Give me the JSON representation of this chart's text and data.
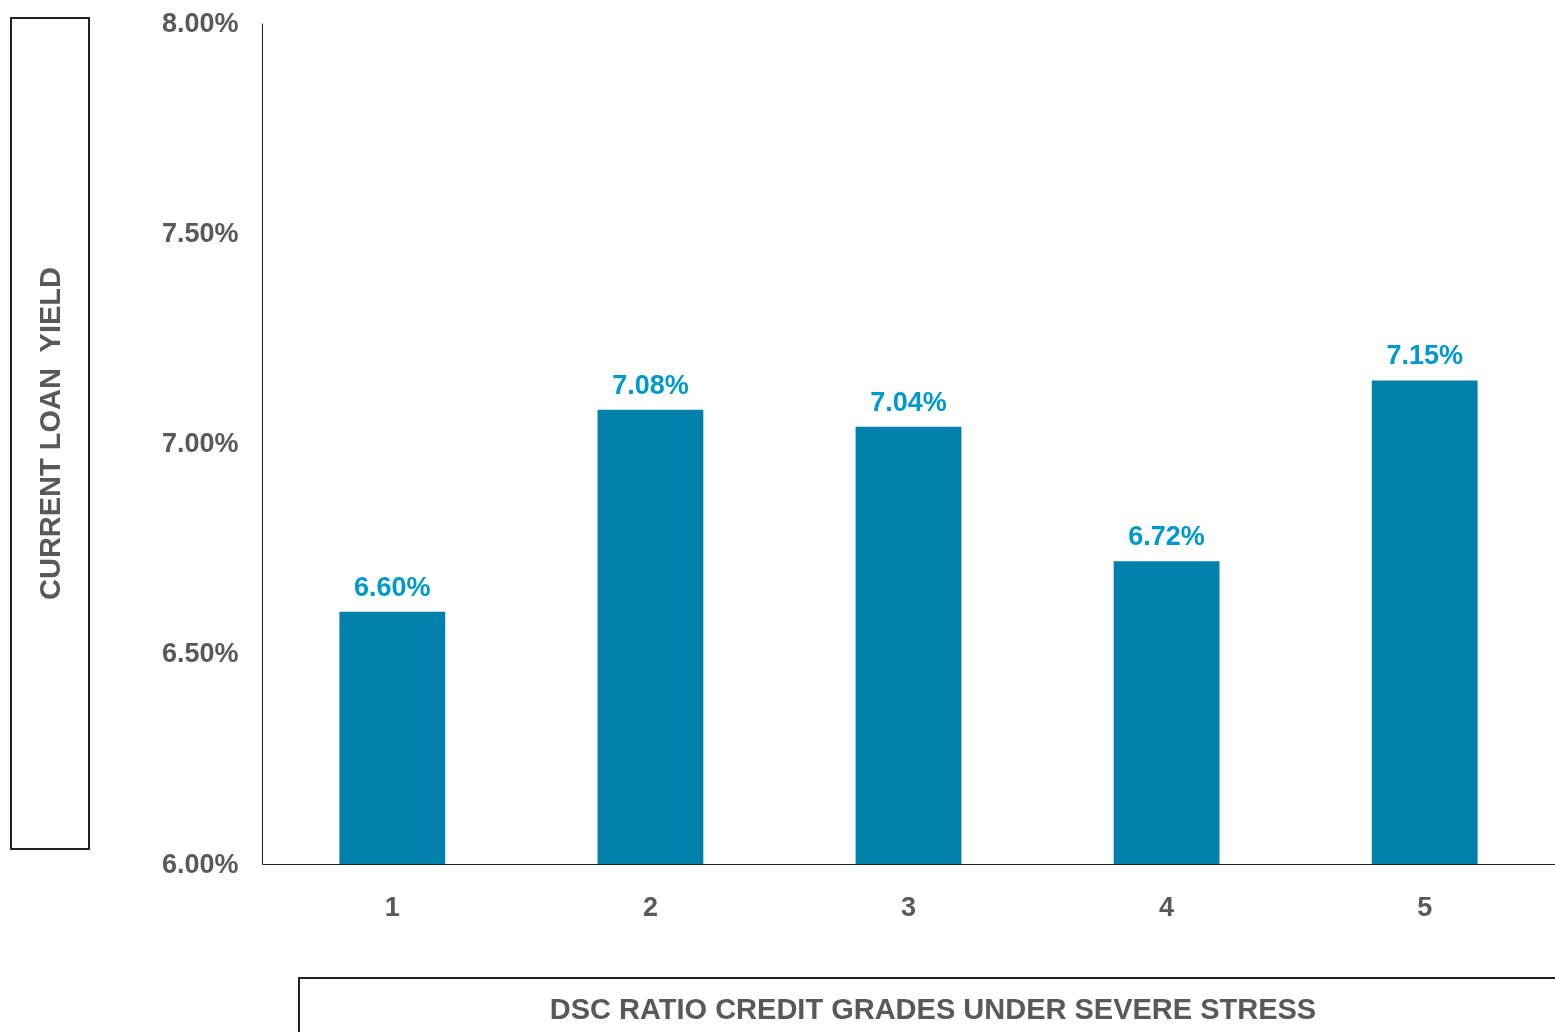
{
  "chart_data": {
    "type": "bar",
    "xlabel": "DSC RATIO CREDIT GRADES UNDER SEVERE STRESS",
    "ylabel": "CURRENT LOAN  YIELD",
    "categories": [
      "1",
      "2",
      "3",
      "4",
      "5"
    ],
    "values": [
      6.6,
      7.08,
      7.04,
      6.72,
      7.15
    ],
    "value_labels": [
      "6.60%",
      "7.08%",
      "7.04%",
      "6.72%",
      "7.15%"
    ],
    "color": "#0080aa",
    "ylim": [
      6,
      8
    ],
    "yticks": [
      {
        "value": 6,
        "label": "6.00%"
      },
      {
        "value": 6.5,
        "label": "6.50%"
      },
      {
        "value": 7,
        "label": "7.00%"
      },
      {
        "value": 7.5,
        "label": "7.50%"
      },
      {
        "value": 8,
        "label": "8.00%"
      }
    ],
    "grid": false
  }
}
